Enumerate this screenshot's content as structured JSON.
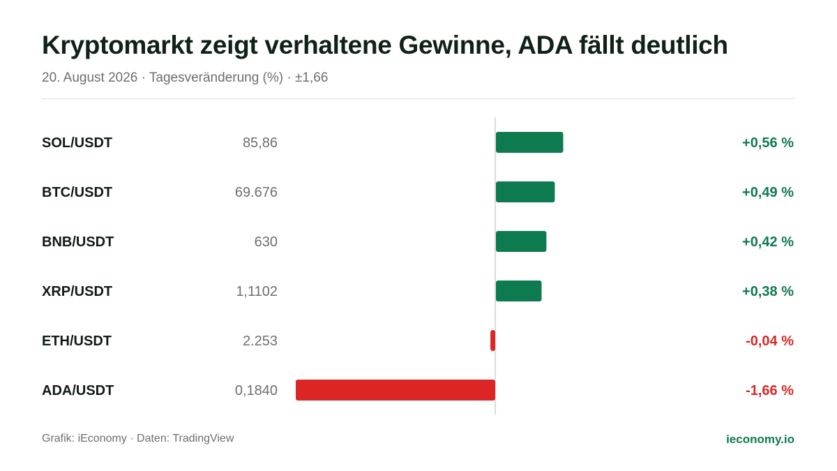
{
  "header": {
    "title": "Kryptomarkt zeigt verhaltene Gewinne, ADA fällt deutlich",
    "subtitle": "20. August 2026 · Tagesveränderung (%) · ±1,66"
  },
  "chart_data": {
    "type": "bar",
    "orientation": "horizontal",
    "categories": [
      "SOL/USDT",
      "BTC/USDT",
      "BNB/USDT",
      "XRP/USDT",
      "ETH/USDT",
      "ADA/USDT"
    ],
    "prices": [
      "85,86",
      "69.676",
      "630",
      "1,1102",
      "2.253",
      "0,1840"
    ],
    "values": [
      0.56,
      0.49,
      0.42,
      0.38,
      -0.04,
      -1.66
    ],
    "value_labels": [
      "+0,56 %",
      "+0,49 %",
      "+0,42 %",
      "+0,38 %",
      "-0,04 %",
      "-1,66 %"
    ],
    "xlim": [
      -1.66,
      1.66
    ],
    "colors": {
      "positive": "#0e7a4f",
      "negative": "#dc2626",
      "zero_line": "#d0d0d0"
    },
    "grid": false
  },
  "footer": {
    "source": "Grafik: iEconomy · Daten: TradingView",
    "brand": "ieconomy.io"
  }
}
